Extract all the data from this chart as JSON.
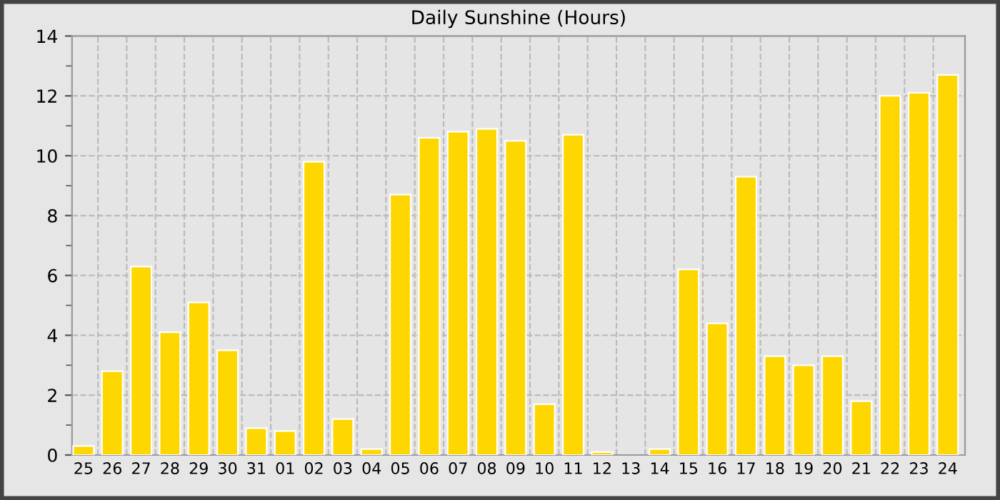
{
  "chart_data": {
    "type": "bar",
    "title": "Daily Sunshine (Hours)",
    "categories": [
      "25",
      "26",
      "27",
      "28",
      "29",
      "30",
      "31",
      "01",
      "02",
      "03",
      "04",
      "05",
      "06",
      "07",
      "08",
      "09",
      "10",
      "11",
      "12",
      "13",
      "14",
      "15",
      "16",
      "17",
      "18",
      "19",
      "20",
      "21",
      "22",
      "23",
      "24"
    ],
    "values": [
      0.3,
      2.8,
      6.3,
      4.1,
      5.1,
      3.5,
      0.9,
      0.8,
      9.8,
      1.2,
      0.2,
      8.7,
      10.6,
      10.8,
      10.9,
      10.5,
      1.7,
      10.7,
      0.1,
      0,
      0.2,
      6.2,
      4.4,
      9.3,
      3.3,
      3.0,
      3.3,
      1.8,
      12.0,
      12.1,
      12.7
    ],
    "color": "#ffd700",
    "ylim": [
      0,
      14
    ],
    "yticks": [
      0,
      2,
      4,
      6,
      8,
      10,
      12,
      14
    ],
    "grid": true
  }
}
